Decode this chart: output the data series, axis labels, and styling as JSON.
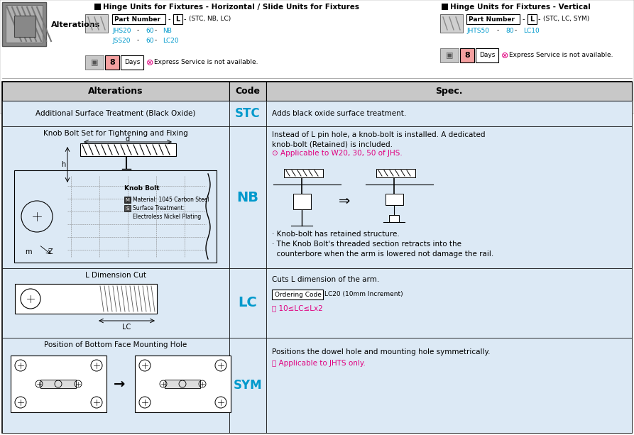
{
  "bg_color": "#ffffff",
  "light_blue": "#dce9f5",
  "mid_blue": "#c8dff0",
  "header_gray": "#c8c8c8",
  "cyan_color": "#0099cc",
  "pink_color": "#e0007f",
  "title_text": "Hinge Units for Fixtures - Horizontal / Slide Units for Fixtures",
  "title_text2": "Hinge Units for Fixtures - Vertical",
  "express_text": "Express Service is not available.",
  "stc_alt": "Additional Surface Treatment (Black Oxide)",
  "stc_spec": "Adds black oxide surface treatment.",
  "nb_alt": "Knob Bolt Set for Tightening and Fixing",
  "nb_spec_1": "Instead of L pin hole, a knob-bolt is installed. A dedicated",
  "nb_spec_2": "knob-bolt (Retained) is included.",
  "nb_spec_3": "Applicable to W20, 30, 50 of JHS.",
  "nb_spec_4": "· Knob-bolt has retained structure.",
  "nb_spec_5": "· The Knob Bolt's threaded section retracts into the",
  "nb_spec_6": "  counterbore when the arm is lowered not damage the rail.",
  "lc_alt": "L Dimension Cut",
  "lc_spec_1": "Cuts L dimension of the arm.",
  "lc_spec_2": "LC20 (10mm Increment)",
  "lc_spec_3": "ⓘ 10≤LC≤Lx2",
  "sym_alt": "Position of Bottom Face Mounting Hole",
  "sym_spec_1": "Positions the dowel hole and mounting hole symmetrically.",
  "sym_spec_2": "ⓘ Applicable to JHTS only."
}
